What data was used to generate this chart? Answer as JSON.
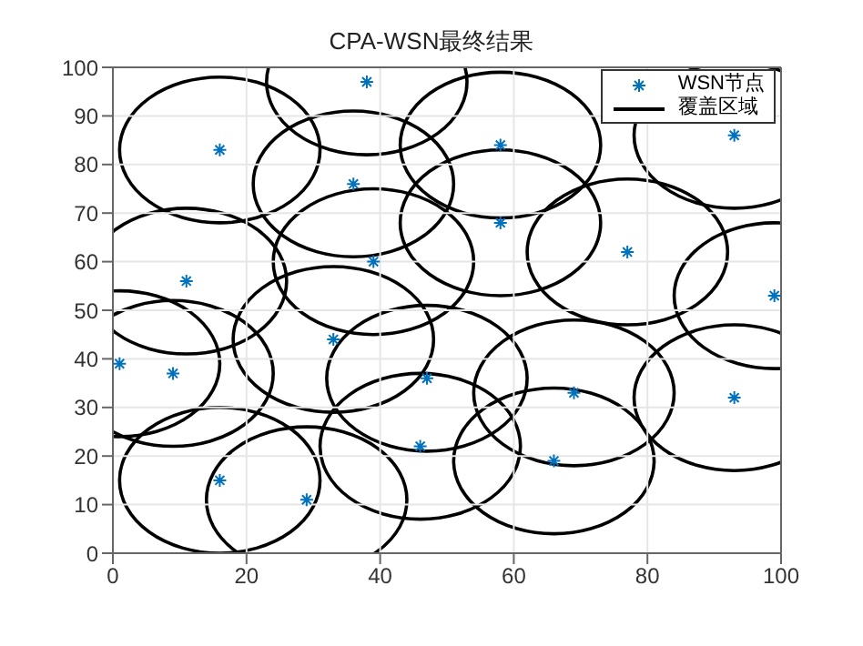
{
  "chart_data": {
    "type": "scatter",
    "title": "CPA-WSN最终结果",
    "xlim": [
      0,
      100
    ],
    "xticks": [
      0,
      20,
      40,
      60,
      80,
      100
    ],
    "ylim": [
      0,
      100
    ],
    "yticks": [
      0,
      10,
      20,
      30,
      40,
      50,
      60,
      70,
      80,
      90,
      100
    ],
    "grid": true,
    "legend": "top right",
    "series": [
      {
        "name": "WSN节点",
        "color": "#0072bd",
        "marker": "cross",
        "x": [
          1,
          9,
          11,
          16,
          16,
          29,
          33,
          36,
          38,
          39,
          46,
          47,
          58,
          58,
          66,
          69,
          77,
          93,
          93,
          99
        ],
        "values": [
          39,
          37,
          56,
          83,
          15,
          11,
          44,
          76,
          97,
          60,
          22,
          36,
          84,
          68,
          19,
          33,
          62,
          32,
          86,
          53
        ]
      },
      {
        "name": "覆盖区域",
        "type": "line",
        "color": "#000000"
      }
    ]
  }
}
